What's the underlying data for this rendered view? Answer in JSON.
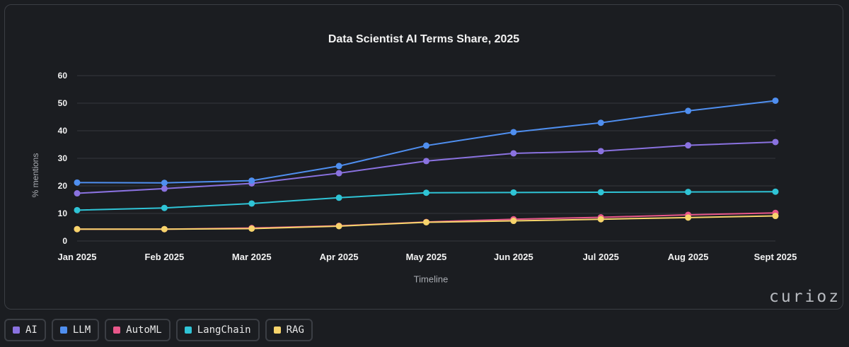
{
  "chart_data": {
    "type": "line",
    "title": "Data Scientist AI Terms Share, 2025",
    "xlabel": "Timeline",
    "ylabel": "% mentions",
    "categories": [
      "Jan 2025",
      "Feb 2025",
      "Mar 2025",
      "Apr 2025",
      "May 2025",
      "Jun 2025",
      "Jul 2025",
      "Aug 2025",
      "Sept 2025"
    ],
    "ylim": [
      0,
      60
    ],
    "yticks": [
      0,
      10,
      20,
      30,
      40,
      50,
      60
    ],
    "grid": true,
    "legend_position": "bottom",
    "series": [
      {
        "name": "AI",
        "color": "#8a72e0",
        "values": [
          17.3,
          19,
          20.9,
          24.6,
          29,
          31.8,
          32.6,
          34.7,
          35.9
        ]
      },
      {
        "name": "LLM",
        "color": "#4f8ff0",
        "values": [
          21.2,
          21.1,
          21.9,
          27.2,
          34.6,
          39.5,
          42.9,
          47.2,
          50.9
        ]
      },
      {
        "name": "AutoML",
        "color": "#e8578a",
        "values": [
          4.3,
          4.3,
          4.7,
          5.5,
          6.9,
          7.9,
          8.6,
          9.5,
          10.2
        ]
      },
      {
        "name": "LangChain",
        "color": "#2fc4d6",
        "values": [
          11.2,
          12,
          13.6,
          15.7,
          17.5,
          17.6,
          17.7,
          17.8,
          17.9
        ]
      },
      {
        "name": "RAG",
        "color": "#f7d46b",
        "values": [
          4.3,
          4.3,
          4.5,
          5.4,
          6.8,
          7.3,
          7.9,
          8.5,
          9.1
        ]
      }
    ]
  },
  "watermark": "curioz"
}
